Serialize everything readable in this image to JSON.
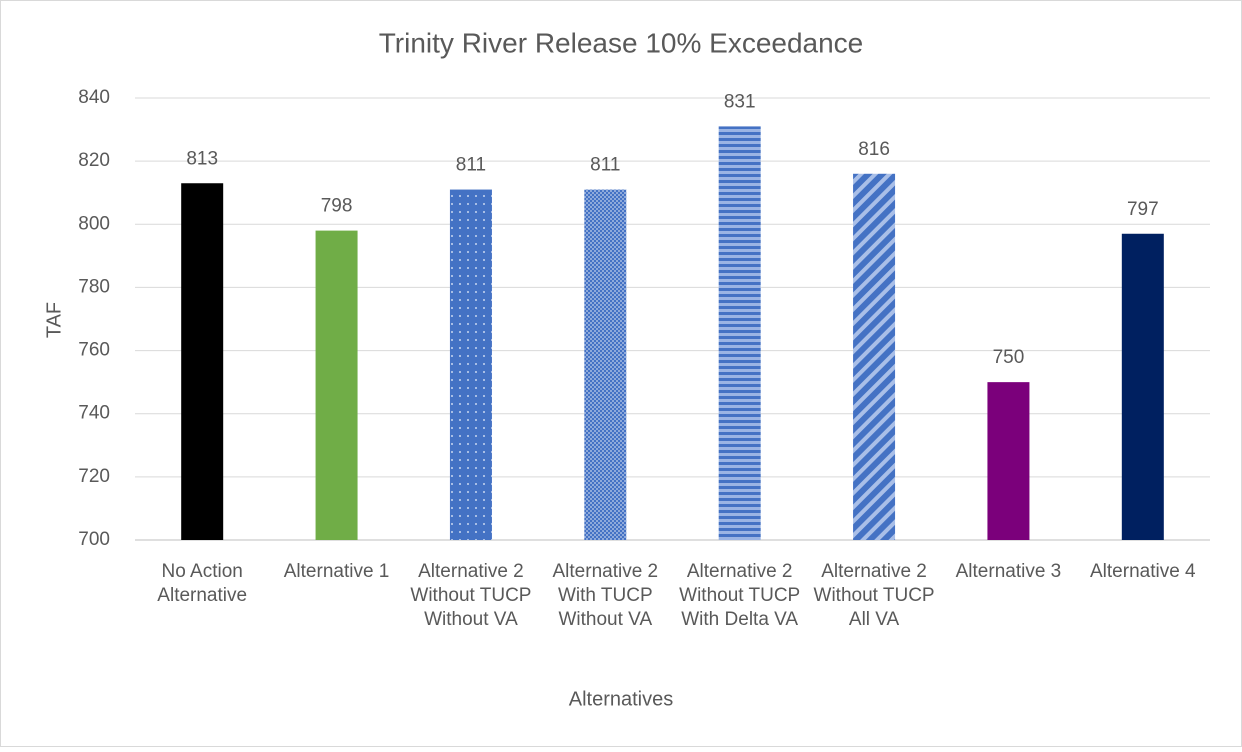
{
  "chart_data": {
    "type": "bar",
    "title": "Trinity River Release 10% Exceedance",
    "xlabel": "Alternatives",
    "ylabel": "TAF",
    "categories": [
      "No Action Alternative",
      "Alternative 1",
      "Alternative 2 Without TUCP Without VA",
      "Alternative 2 With TUCP Without VA",
      "Alternative 2 Without TUCP With Delta VA",
      "Alternative 2 Without TUCP All VA",
      "Alternative 3",
      "Alternative 4"
    ],
    "values": [
      813,
      798,
      811,
      811,
      831,
      816,
      750,
      797
    ],
    "colors": [
      "#000000",
      "#70ad47",
      "#4472c4",
      "#4472c4",
      "#4472c4",
      "#4472c4",
      "#7b007b",
      "#002060"
    ],
    "patterns": [
      "solid",
      "solid",
      "dots",
      "checker",
      "hstripes",
      "diagonal",
      "solid",
      "solid"
    ],
    "ylim": [
      700,
      840
    ],
    "yticks": [
      700,
      720,
      740,
      760,
      780,
      800,
      820,
      840
    ],
    "grid": true
  }
}
